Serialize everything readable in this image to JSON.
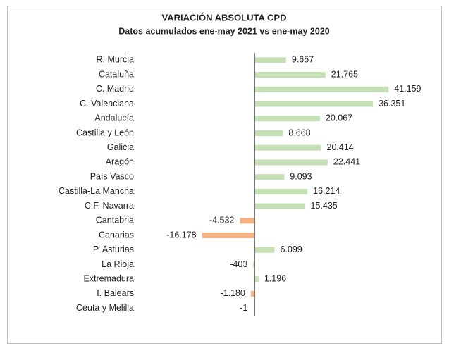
{
  "chart_data": {
    "type": "hbar",
    "title": "VARIACIÓN ABSOLUTA CPD",
    "subtitle": "Datos acumulados ene-may 2021 vs ene-may 2020",
    "categories": [
      "R. Murcia",
      "Cataluña",
      "C. Madrid",
      "C. Valenciana",
      "Andalucía",
      "Castilla y León",
      "Galicia",
      "Aragón",
      "País Vasco",
      "Castilla-La Mancha",
      "C.F. Navarra",
      "Cantabria",
      "Canarias",
      "P. Asturias",
      "La Rioja",
      "Extremadura",
      "I. Balears",
      "Ceuta y Melilla"
    ],
    "values": [
      9657,
      21765,
      41159,
      36351,
      20067,
      8668,
      20414,
      22441,
      9093,
      16214,
      15435,
      -4532,
      -16178,
      6099,
      -403,
      1196,
      -1180,
      -1
    ],
    "value_labels": [
      "9.657",
      "21.765",
      "41.159",
      "36.351",
      "20.067",
      "8.668",
      "20.414",
      "22.441",
      "9.093",
      "16.214",
      "15.435",
      "-4.532",
      "-16.178",
      "6.099",
      "-403",
      "1.196",
      "-1.180",
      "-1"
    ],
    "color": "#c5e0b4",
    "negative_color": "#f4b183",
    "xlim": [
      -20000,
      45000
    ]
  }
}
